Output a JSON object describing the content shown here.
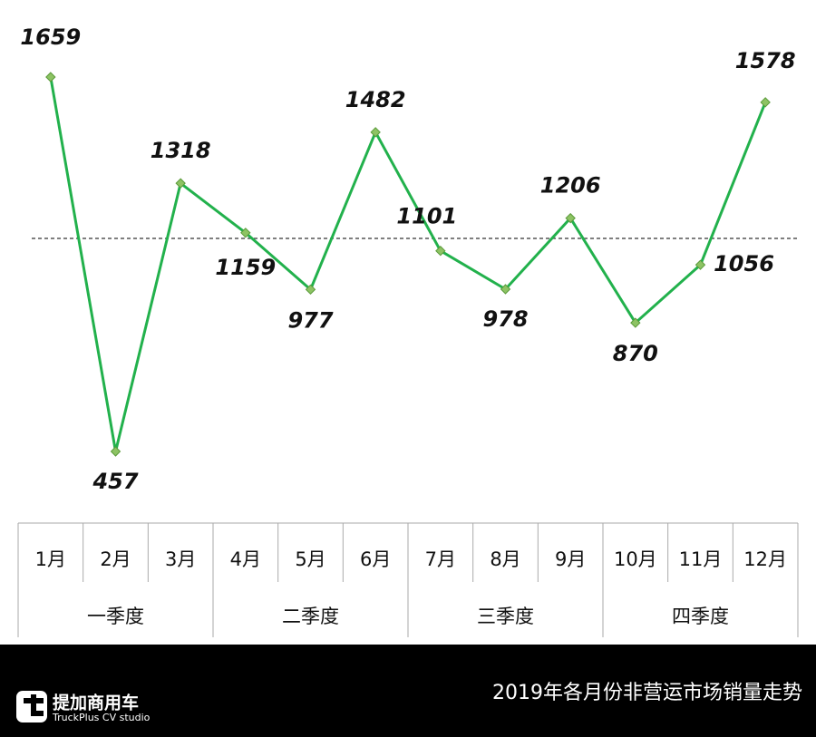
{
  "chart_data": {
    "type": "line",
    "title": "2019年各月份非营运市场销量走势",
    "categories": [
      "1月",
      "2月",
      "3月",
      "4月",
      "5月",
      "6月",
      "7月",
      "8月",
      "9月",
      "10月",
      "11月",
      "12月"
    ],
    "groups": [
      "一季度",
      "二季度",
      "三季度",
      "四季度"
    ],
    "series": [
      {
        "color": "#22b14c",
        "marker_color": "#8dc363",
        "values": [
          1659,
          457,
          1318,
          1159,
          977,
          1482,
          1101,
          978,
          1206,
          870,
          1056,
          1578
        ]
      }
    ],
    "reference_line": 1141
  },
  "logo": {
    "name": "提加商用车",
    "subtitle": "TruckPlus CV studio"
  }
}
